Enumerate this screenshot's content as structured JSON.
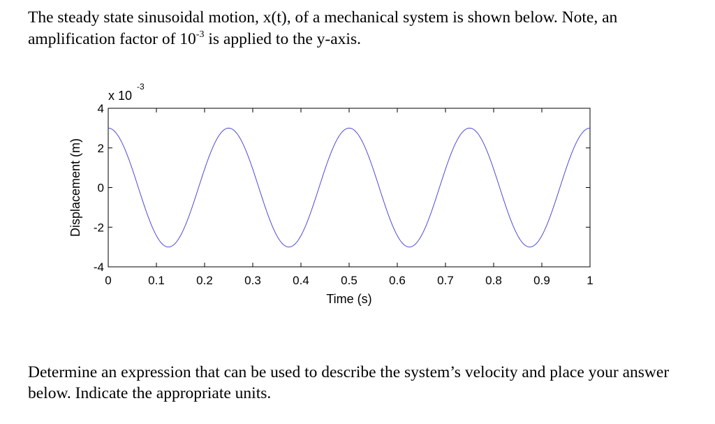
{
  "intro": {
    "line_part1": "The steady state sinusoidal motion, x(t), of a mechanical system is shown below. Note, an amplification factor of 10",
    "exponent": "-3",
    "line_part2": " is applied to the y-axis."
  },
  "question": "Determine an expression that can be used to describe the system’s velocity and place your answer below. Indicate the appropriate units.",
  "chart_data": {
    "type": "line",
    "xlabel": "Time (s)",
    "ylabel": "Displacement (m)",
    "multiplier_label": "x 10",
    "multiplier_exponent": "-3",
    "xlim": [
      0,
      1
    ],
    "ylim": [
      -4,
      4
    ],
    "x_ticks": [
      0,
      0.1,
      0.2,
      0.3,
      0.4,
      0.5,
      0.6,
      0.7,
      0.8,
      0.9,
      1
    ],
    "x_tick_labels": [
      "0",
      "0.1",
      "0.2",
      "0.3",
      "0.4",
      "0.5",
      "0.6",
      "0.7",
      "0.8",
      "0.9",
      "1"
    ],
    "y_ticks": [
      4,
      2,
      0,
      -2,
      -4
    ],
    "y_tick_labels": [
      "4",
      "2",
      "0",
      "-2",
      "-4"
    ],
    "grid": false,
    "line_color": "#4b4bd8",
    "series": [
      {
        "function": "3*cos(2*pi*4*t)",
        "amplitude": 3,
        "frequency_hz": 4,
        "phase_rad": 0,
        "x": [
          0,
          0.0625,
          0.125,
          0.1875,
          0.25,
          0.3125,
          0.375,
          0.4375,
          0.5,
          0.5625,
          0.625,
          0.6875,
          0.75,
          0.8125,
          0.875,
          0.9375,
          1.0
        ],
        "y": [
          3,
          0,
          -3,
          0,
          3,
          0,
          -3,
          0,
          3,
          0,
          -3,
          0,
          3,
          0,
          -3,
          0,
          3
        ]
      }
    ]
  }
}
